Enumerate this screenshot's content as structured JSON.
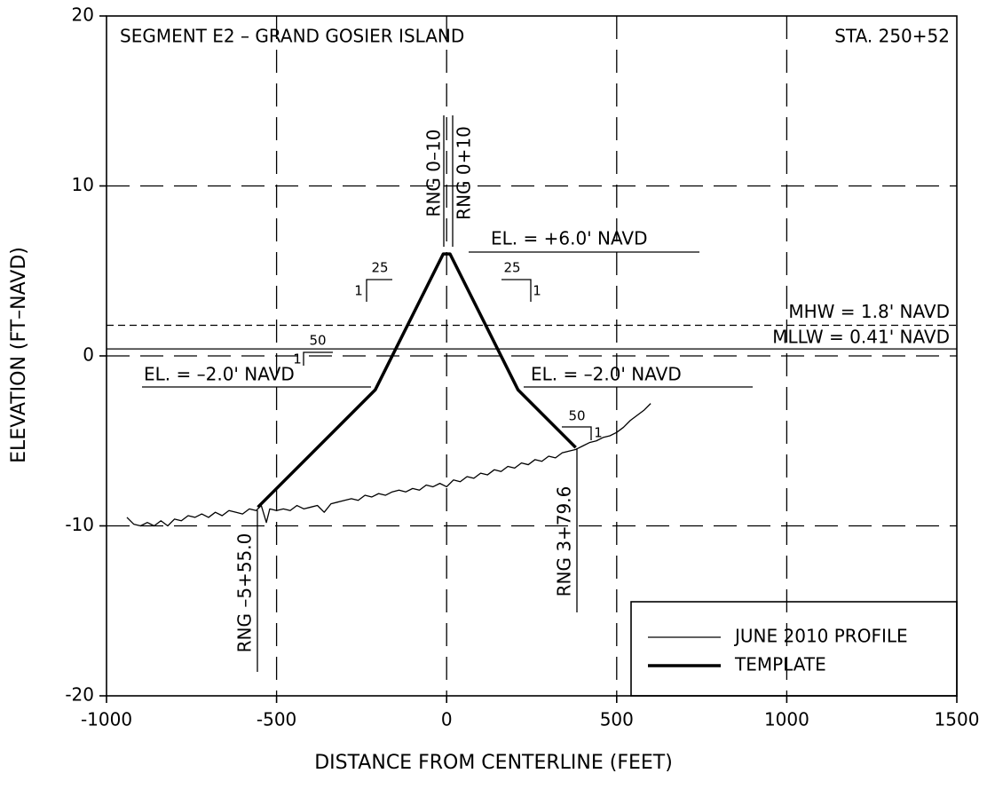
{
  "chart_data": {
    "type": "line",
    "xlabel": "DISTANCE FROM CENTERLINE (FEET)",
    "ylabel": "ELEVATION (FT–NAVD)",
    "xlim": [
      -1000,
      1500
    ],
    "ylim": [
      -20,
      20
    ],
    "xticks": [
      -1000,
      -500,
      0,
      500,
      1000,
      1500
    ],
    "yticks": [
      -20,
      -10,
      0,
      10,
      20
    ],
    "grid": true,
    "legend": "lower right",
    "series": [
      {
        "name": "JUNE 2010 PROFILE",
        "color": "#000000",
        "line_width": 1.3,
        "x": [
          -940,
          -920,
          -900,
          -880,
          -860,
          -840,
          -820,
          -800,
          -780,
          -760,
          -740,
          -720,
          -700,
          -680,
          -660,
          -640,
          -620,
          -600,
          -580,
          -560,
          -545,
          -530,
          -520,
          -500,
          -480,
          -460,
          -440,
          -420,
          -400,
          -380,
          -360,
          -340,
          -320,
          -300,
          -280,
          -260,
          -240,
          -220,
          -200,
          -180,
          -160,
          -140,
          -120,
          -100,
          -80,
          -60,
          -40,
          -20,
          0,
          20,
          40,
          60,
          80,
          100,
          120,
          140,
          160,
          180,
          200,
          220,
          240,
          260,
          280,
          300,
          320,
          340,
          360,
          380,
          400,
          420,
          440,
          460,
          480,
          500,
          520,
          540,
          560,
          580,
          600
        ],
        "values": [
          -9.5,
          -9.9,
          -10,
          -9.8,
          -10,
          -9.7,
          -10,
          -9.6,
          -9.7,
          -9.4,
          -9.5,
          -9.3,
          -9.5,
          -9.2,
          -9.4,
          -9.1,
          -9.2,
          -9.3,
          -9.0,
          -9.1,
          -8.8,
          -9.8,
          -9.0,
          -9.1,
          -9.0,
          -9.1,
          -8.8,
          -9.0,
          -8.9,
          -8.8,
          -9.2,
          -8.7,
          -8.6,
          -8.5,
          -8.4,
          -8.5,
          -8.2,
          -8.3,
          -8.1,
          -8.2,
          -8.0,
          -7.9,
          -8.0,
          -7.8,
          -7.9,
          -7.6,
          -7.7,
          -7.5,
          -7.7,
          -7.3,
          -7.4,
          -7.1,
          -7.2,
          -6.9,
          -7.0,
          -6.7,
          -6.8,
          -6.5,
          -6.6,
          -6.3,
          -6.4,
          -6.1,
          -6.2,
          -5.9,
          -6.0,
          -5.7,
          -5.6,
          -5.5,
          -5.3,
          -5.1,
          -5.0,
          -4.8,
          -4.7,
          -4.5,
          -4.2,
          -3.8,
          -3.5,
          -3.2,
          -2.8
        ]
      },
      {
        "name": "TEMPLATE",
        "color": "#000000",
        "line_width": 3.5,
        "x": [
          -555,
          -210,
          -10,
          10,
          210,
          379.6
        ],
        "values": [
          -8.9,
          -2,
          6,
          6,
          -2,
          -5.39
        ]
      }
    ],
    "reference_lines": [
      {
        "label": "MHW = 1.8' NAVD",
        "value": 1.8,
        "style": "dashed"
      },
      {
        "label": "MLLW = 0.41' NAVD",
        "value": 0.41,
        "style": "solid"
      }
    ],
    "annotations": [
      "SEGMENT E2 – GRAND GOSIER ISLAND",
      "STA. 250+52",
      "RNG 0–10",
      "RNG 0+10",
      "EL. = +6.0' NAVD",
      "EL. = –2.0' NAVD",
      "EL. = –2.0' NAVD",
      "RNG –5+55.0",
      "RNG 3+79.6",
      "25",
      "1",
      "25",
      "1",
      "50",
      "1",
      "50",
      "1"
    ]
  }
}
